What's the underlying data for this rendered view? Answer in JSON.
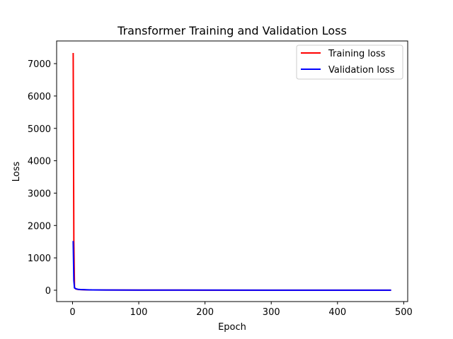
{
  "chart_data": {
    "type": "line",
    "title": "Transformer Training and Validation Loss",
    "xlabel": "Epoch",
    "ylabel": "Loss",
    "xlim": [
      -24,
      506
    ],
    "ylim": [
      -350,
      7700
    ],
    "xticks": [
      0,
      100,
      200,
      300,
      400,
      500
    ],
    "yticks": [
      0,
      1000,
      2000,
      3000,
      4000,
      5000,
      6000,
      7000
    ],
    "legend_position": "top-right",
    "series": [
      {
        "name": "Training loss",
        "color": "#ff0000",
        "x": [
          1,
          2,
          3,
          5,
          8,
          12,
          20,
          30,
          50,
          100,
          200,
          300,
          400,
          481
        ],
        "y": [
          7330,
          1520,
          80,
          40,
          25,
          18,
          12,
          9,
          6,
          4,
          3,
          2,
          2,
          2
        ]
      },
      {
        "name": "Validation loss",
        "color": "#0000ff",
        "x": [
          1,
          2,
          3,
          5,
          8,
          12,
          20,
          30,
          50,
          100,
          200,
          300,
          400,
          481
        ],
        "y": [
          1520,
          300,
          70,
          45,
          30,
          20,
          14,
          10,
          7,
          5,
          4,
          3,
          3,
          3
        ]
      }
    ]
  }
}
